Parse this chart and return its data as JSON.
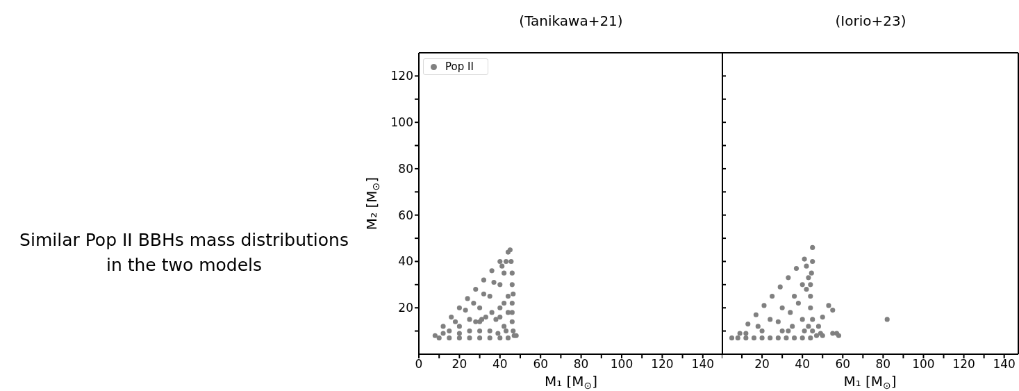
{
  "chart_data": [
    {
      "type": "scatter",
      "title": "(Tanikawa+21)",
      "xlabel": "M₁ [M$_{⊙}$]",
      "ylabel": "M₂ [M$_{⊙}$]",
      "annotations": [
        "Similar Pop II BBHs mass distributions in the two models"
      ],
      "legend": "top left",
      "marker": "circle",
      "xlim": [
        0,
        150
      ],
      "ylim": [
        0,
        130
      ],
      "xticks": [
        0,
        {
          "value": 10,
          "label": null
        },
        20,
        {
          "value": 30,
          "label": null
        },
        40,
        {
          "value": 50,
          "label": null
        },
        60,
        {
          "value": 70,
          "label": null
        },
        80,
        {
          "value": 90,
          "label": null
        },
        100,
        {
          "value": 110,
          "label": null
        },
        120,
        {
          "value": 130,
          "label": null
        },
        140
      ],
      "yticks": [
        {
          "value": 10,
          "label": null
        },
        20,
        {
          "value": 30,
          "label": null
        },
        40,
        {
          "value": 50,
          "label": null
        },
        60,
        {
          "value": 70,
          "label": null
        },
        80,
        {
          "value": 90,
          "label": null
        },
        100,
        {
          "value": 110,
          "label": null
        },
        120
      ],
      "series": [
        {
          "name": "Pop II",
          "color": "#808080",
          "x": [
            8,
            12,
            16,
            20,
            24,
            28,
            32,
            36,
            40,
            44,
            45,
            45.5,
            46,
            46,
            46.5,
            46,
            46,
            46,
            46.5,
            47,
            48,
            10,
            15,
            20,
            25,
            30,
            35,
            40,
            44,
            15,
            20,
            25,
            30,
            35,
            40,
            42,
            43,
            20,
            30,
            35,
            38,
            40,
            44,
            25,
            33,
            28,
            42,
            44,
            39,
            12,
            18,
            23,
            27,
            32,
            37,
            41,
            30,
            31,
            36,
            40,
            42,
            43
          ],
          "values": [
            8,
            12,
            16,
            20,
            24,
            28,
            32,
            36,
            40,
            44,
            45,
            40,
            35,
            30,
            26,
            22,
            18,
            14,
            10,
            8,
            8,
            7,
            7,
            7,
            7,
            7,
            7,
            7,
            7,
            10,
            12,
            15,
            20,
            25,
            30,
            35,
            40,
            9,
            10,
            10,
            15,
            20,
            25,
            10,
            16,
            14,
            12,
            18,
            9,
            9,
            14,
            19,
            22,
            26,
            31,
            38,
            14,
            15,
            18,
            16,
            22,
            10
          ]
        }
      ]
    },
    {
      "type": "scatter",
      "title": "(Iorio+23)",
      "xlabel": "M₁ [M$_{⊙}$]",
      "tick_labels": "x",
      "marker": "circle",
      "xlim": [
        0,
        147
      ],
      "ylim": [
        0,
        130
      ],
      "xticks": [
        {
          "value": 0,
          "label": null
        },
        {
          "value": 10,
          "label": null
        },
        20,
        {
          "value": 30,
          "label": null
        },
        40,
        {
          "value": 50,
          "label": null
        },
        60,
        {
          "value": 70,
          "label": null
        },
        80,
        {
          "value": 90,
          "label": null
        },
        100,
        {
          "value": 110,
          "label": null
        },
        120,
        {
          "value": 130,
          "label": null
        },
        140
      ],
      "yticks": [
        10,
        20,
        30,
        40,
        50,
        60,
        70,
        80,
        90,
        100,
        110,
        120
      ],
      "series": [
        {
          "color": "#808080",
          "x": [
            5,
            9,
            13,
            17,
            21,
            25,
            29,
            33,
            37,
            41,
            45,
            45,
            44.5,
            44,
            44,
            44,
            45,
            45,
            33,
            53,
            55,
            50,
            48,
            47,
            49,
            50,
            55,
            57,
            58,
            82,
            8,
            12,
            16,
            20,
            24,
            28,
            32,
            36,
            40,
            44,
            12,
            18,
            24,
            30,
            36,
            40,
            42,
            20,
            28,
            34,
            38,
            42,
            43,
            30,
            35,
            40,
            41,
            43
          ],
          "values": [
            7,
            9,
            13,
            17,
            21,
            25,
            29,
            33,
            37,
            41,
            46,
            40,
            35,
            30,
            25,
            20,
            15,
            10,
            10,
            21,
            19,
            16,
            12,
            8,
            9,
            8,
            9,
            9,
            8,
            15,
            7,
            7,
            7,
            7,
            7,
            7,
            7,
            7,
            7,
            7,
            9,
            12,
            15,
            20,
            25,
            30,
            38,
            10,
            14,
            18,
            22,
            28,
            33,
            10,
            12,
            15,
            10,
            12
          ]
        }
      ]
    }
  ]
}
